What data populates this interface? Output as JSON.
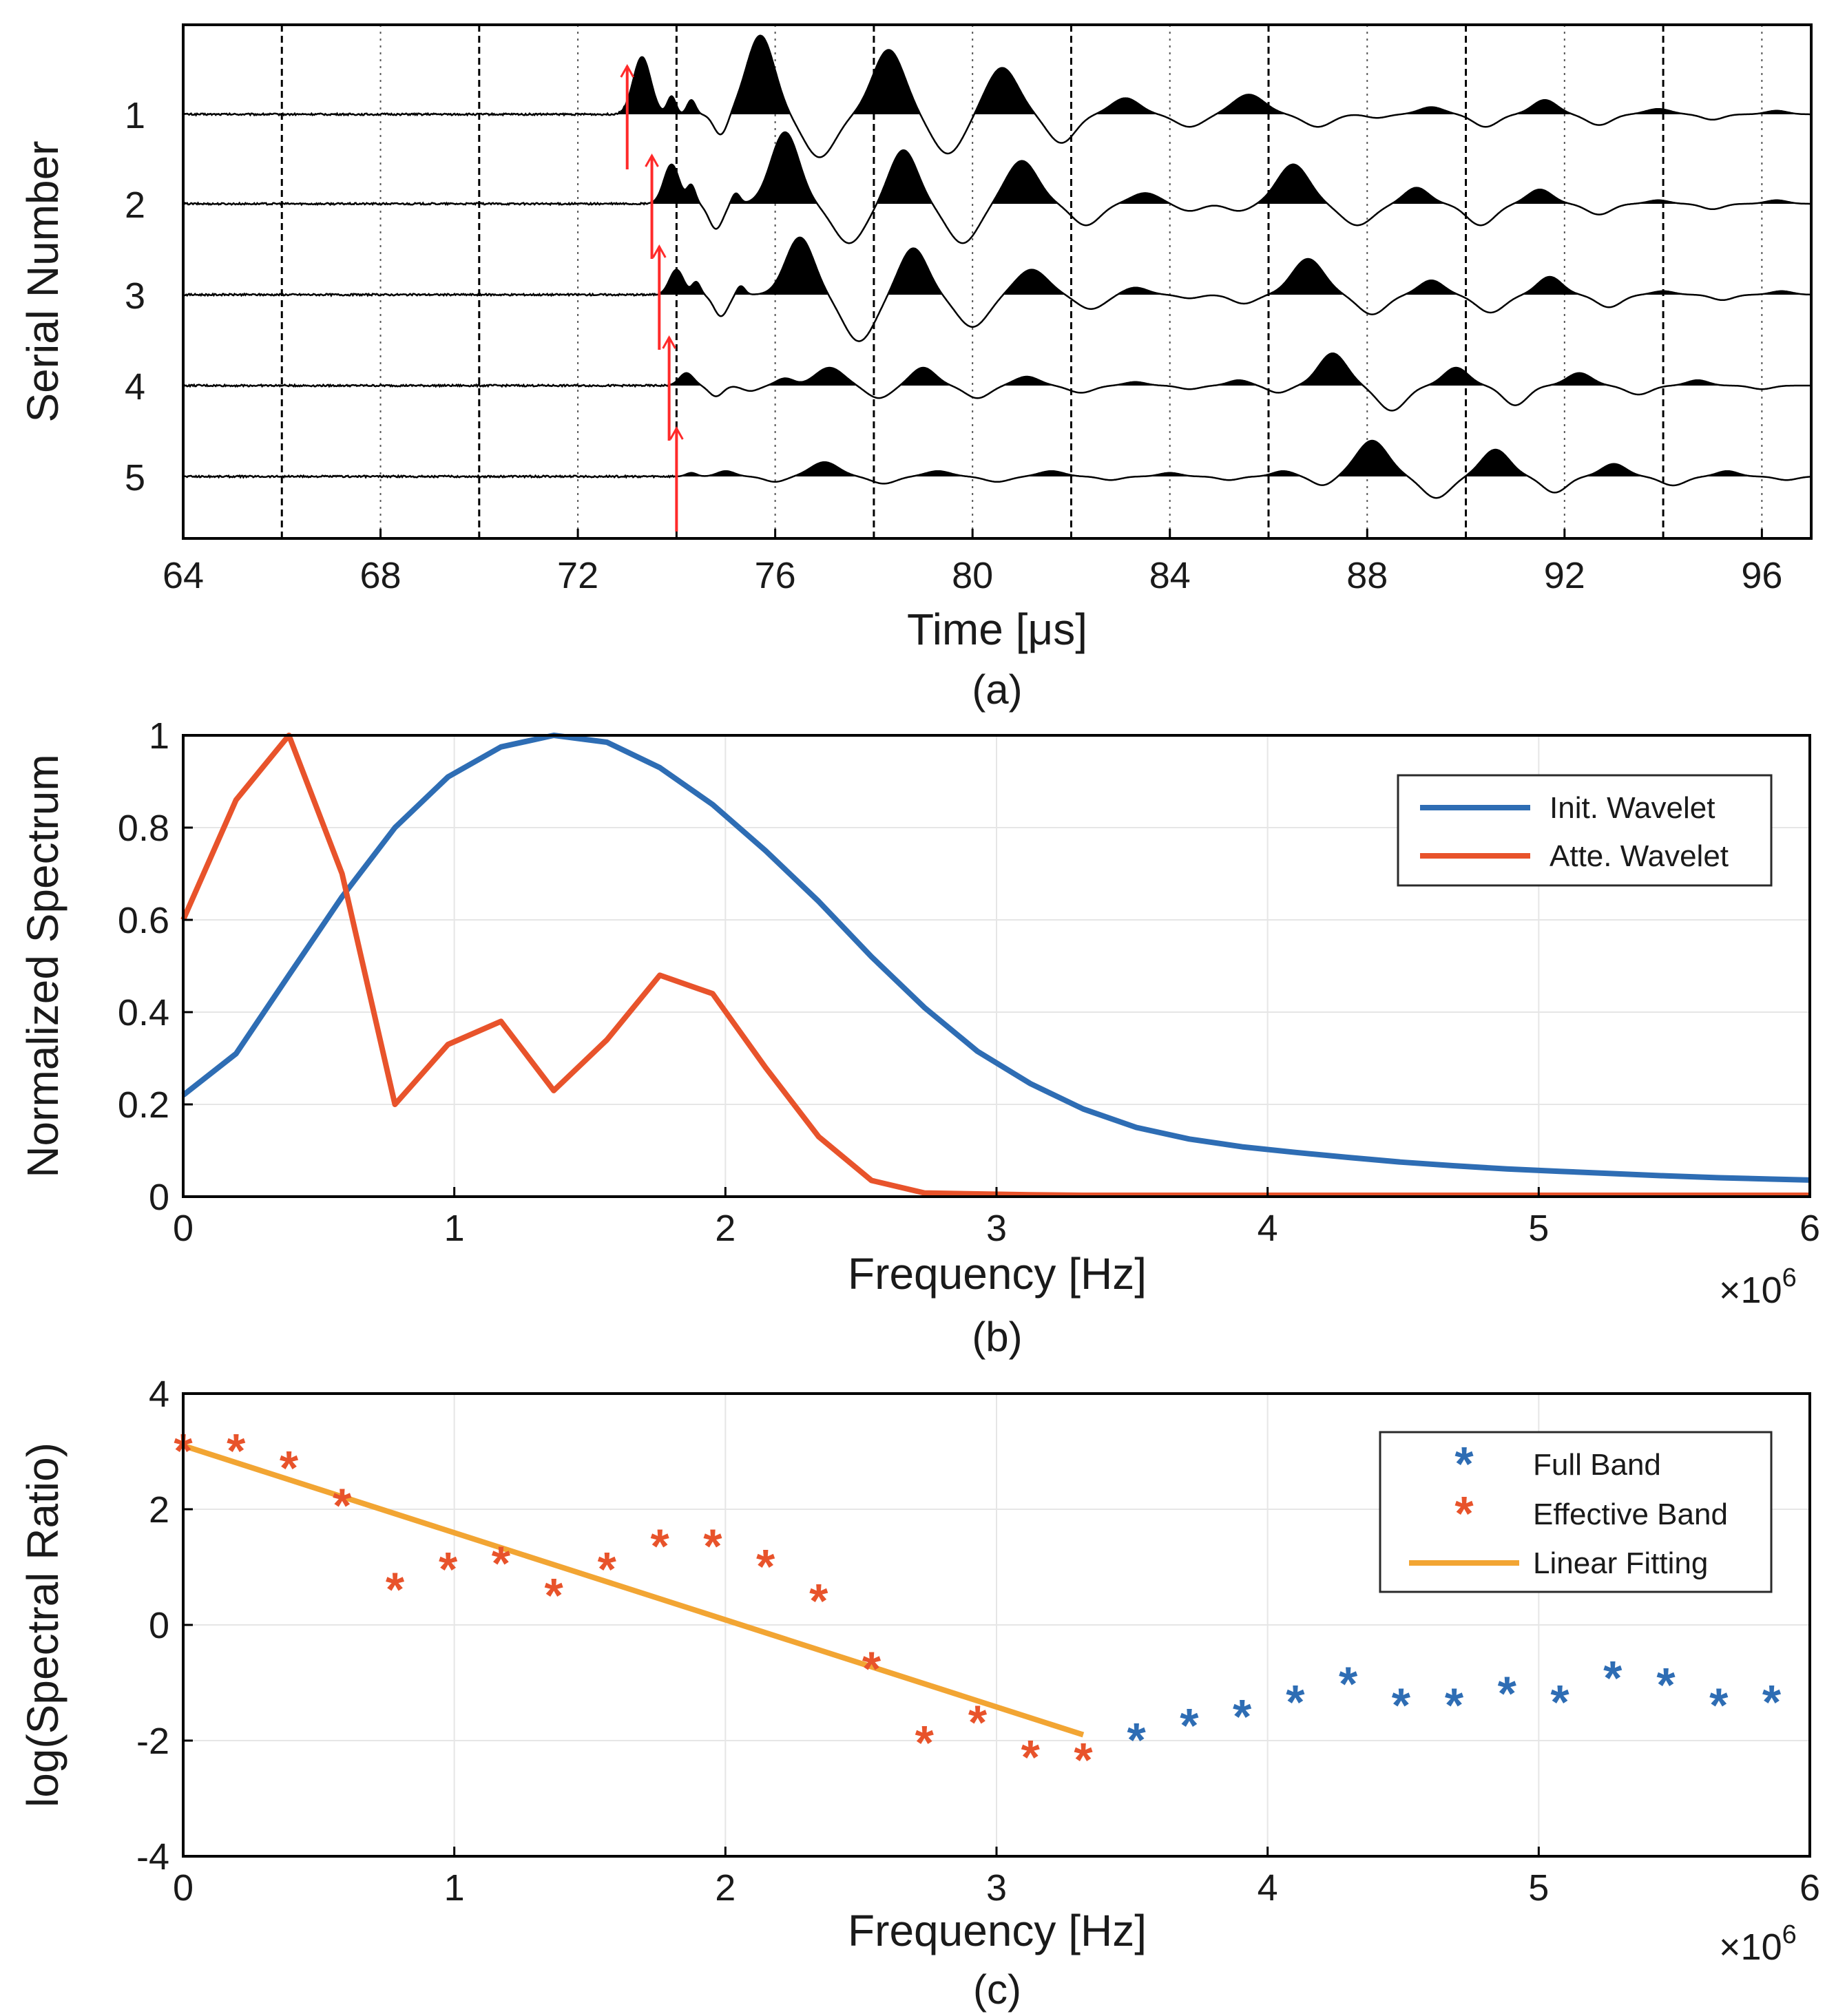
{
  "colors": {
    "blue": "#2e6db4",
    "orange": "#e8532b",
    "fit": "#f2a533",
    "arrow": "#ff2a2a",
    "grid": "#e6e6e6",
    "ink": "#000000"
  },
  "chart_data": [
    {
      "id": "a",
      "type": "wiggle",
      "sublabel": "(a)",
      "xlabel": "Time [μs]",
      "ylabel": "Serial Number",
      "xlim": [
        64,
        97
      ],
      "xticks": [
        64,
        68,
        72,
        76,
        80,
        84,
        88,
        92,
        96
      ],
      "dashed_lines": [
        66,
        70,
        74,
        78,
        82,
        86,
        90,
        94
      ],
      "dotted_lines": [
        68,
        72,
        76,
        80,
        84,
        88,
        92,
        96
      ],
      "traces": [
        {
          "label": "1",
          "onset": 73.0,
          "lobes": [
            [
              73.3,
              1.6,
              0.25
            ],
            [
              73.9,
              0.5,
              0.12
            ],
            [
              74.3,
              0.4,
              0.12
            ],
            [
              74.9,
              -0.6,
              0.2
            ],
            [
              75.7,
              2.2,
              0.4
            ],
            [
              76.9,
              -1.2,
              0.45
            ],
            [
              78.3,
              1.8,
              0.45
            ],
            [
              79.5,
              -1.1,
              0.45
            ],
            [
              80.6,
              1.3,
              0.45
            ],
            [
              81.8,
              -0.8,
              0.4
            ],
            [
              83.1,
              0.45,
              0.4
            ],
            [
              84.4,
              -0.35,
              0.4
            ],
            [
              85.6,
              0.55,
              0.45
            ],
            [
              87.0,
              -0.35,
              0.4
            ],
            [
              88.2,
              -0.1,
              0.3
            ],
            [
              89.3,
              0.2,
              0.35
            ],
            [
              90.4,
              -0.35,
              0.35
            ],
            [
              91.6,
              0.4,
              0.35
            ],
            [
              92.7,
              -0.3,
              0.35
            ],
            [
              93.9,
              0.15,
              0.35
            ],
            [
              95.0,
              -0.15,
              0.3
            ],
            [
              96.3,
              0.1,
              0.3
            ]
          ]
        },
        {
          "label": "2",
          "onset": 73.5,
          "lobes": [
            [
              73.9,
              1.1,
              0.22
            ],
            [
              74.3,
              0.5,
              0.12
            ],
            [
              74.8,
              -0.7,
              0.2
            ],
            [
              75.2,
              0.3,
              0.12
            ],
            [
              76.2,
              2.0,
              0.4
            ],
            [
              77.5,
              -1.1,
              0.45
            ],
            [
              78.6,
              1.5,
              0.4
            ],
            [
              79.8,
              -1.1,
              0.45
            ],
            [
              81.0,
              1.2,
              0.45
            ],
            [
              82.3,
              -0.6,
              0.4
            ],
            [
              83.5,
              0.3,
              0.4
            ],
            [
              84.4,
              -0.2,
              0.35
            ],
            [
              85.4,
              -0.2,
              0.35
            ],
            [
              86.5,
              1.1,
              0.45
            ],
            [
              87.8,
              -0.6,
              0.45
            ],
            [
              89.0,
              0.45,
              0.35
            ],
            [
              90.3,
              -0.6,
              0.4
            ],
            [
              91.5,
              0.4,
              0.35
            ],
            [
              92.7,
              -0.3,
              0.35
            ],
            [
              93.9,
              0.1,
              0.3
            ],
            [
              95.0,
              -0.15,
              0.3
            ],
            [
              96.3,
              0.1,
              0.3
            ]
          ]
        },
        {
          "label": "3",
          "onset": 73.65,
          "lobes": [
            [
              74.0,
              0.7,
              0.2
            ],
            [
              74.4,
              0.35,
              0.12
            ],
            [
              74.9,
              -0.6,
              0.2
            ],
            [
              75.3,
              0.25,
              0.12
            ],
            [
              76.5,
              1.6,
              0.4
            ],
            [
              77.7,
              -1.3,
              0.45
            ],
            [
              78.8,
              1.3,
              0.4
            ],
            [
              80.0,
              -0.9,
              0.45
            ],
            [
              81.2,
              0.7,
              0.45
            ],
            [
              82.4,
              -0.4,
              0.4
            ],
            [
              83.3,
              0.2,
              0.35
            ],
            [
              84.4,
              -0.1,
              0.3
            ],
            [
              85.5,
              -0.25,
              0.35
            ],
            [
              86.8,
              1.0,
              0.45
            ],
            [
              88.1,
              -0.55,
              0.4
            ],
            [
              89.3,
              0.4,
              0.35
            ],
            [
              90.5,
              -0.5,
              0.4
            ],
            [
              91.7,
              0.5,
              0.35
            ],
            [
              92.9,
              -0.35,
              0.35
            ],
            [
              94.0,
              0.1,
              0.3
            ],
            [
              95.2,
              -0.15,
              0.3
            ],
            [
              96.4,
              0.1,
              0.3
            ]
          ]
        },
        {
          "label": "4",
          "onset": 73.85,
          "lobes": [
            [
              74.2,
              0.35,
              0.2
            ],
            [
              74.8,
              -0.3,
              0.2
            ],
            [
              75.5,
              -0.15,
              0.25
            ],
            [
              76.2,
              0.2,
              0.25
            ],
            [
              77.1,
              0.5,
              0.4
            ],
            [
              78.1,
              -0.35,
              0.35
            ],
            [
              79.0,
              0.5,
              0.35
            ],
            [
              80.1,
              -0.35,
              0.35
            ],
            [
              81.1,
              0.25,
              0.35
            ],
            [
              82.2,
              -0.2,
              0.35
            ],
            [
              83.3,
              0.1,
              0.3
            ],
            [
              84.4,
              -0.1,
              0.3
            ],
            [
              85.4,
              0.15,
              0.3
            ],
            [
              86.2,
              -0.2,
              0.3
            ],
            [
              87.3,
              0.9,
              0.4
            ],
            [
              88.5,
              -0.7,
              0.4
            ],
            [
              89.8,
              0.5,
              0.35
            ],
            [
              91.0,
              -0.55,
              0.35
            ],
            [
              92.3,
              0.35,
              0.35
            ],
            [
              93.5,
              -0.25,
              0.35
            ],
            [
              94.7,
              0.15,
              0.3
            ],
            [
              96.0,
              -0.1,
              0.3
            ]
          ]
        },
        {
          "label": "5",
          "onset": 74.0,
          "lobes": [
            [
              74.3,
              0.1,
              0.15
            ],
            [
              75.0,
              0.15,
              0.25
            ],
            [
              76.0,
              -0.15,
              0.3
            ],
            [
              77.0,
              0.4,
              0.4
            ],
            [
              78.2,
              -0.2,
              0.35
            ],
            [
              79.3,
              0.15,
              0.35
            ],
            [
              80.5,
              -0.15,
              0.35
            ],
            [
              81.6,
              0.15,
              0.35
            ],
            [
              82.8,
              -0.1,
              0.3
            ],
            [
              84.0,
              0.1,
              0.3
            ],
            [
              85.2,
              -0.1,
              0.3
            ],
            [
              86.3,
              0.15,
              0.3
            ],
            [
              87.1,
              -0.25,
              0.3
            ],
            [
              88.1,
              1.0,
              0.45
            ],
            [
              89.4,
              -0.6,
              0.4
            ],
            [
              90.6,
              0.75,
              0.4
            ],
            [
              91.8,
              -0.45,
              0.35
            ],
            [
              93.0,
              0.35,
              0.35
            ],
            [
              94.2,
              -0.25,
              0.35
            ],
            [
              95.3,
              0.15,
              0.3
            ],
            [
              96.5,
              -0.1,
              0.3
            ]
          ]
        }
      ]
    },
    {
      "id": "b",
      "type": "line",
      "sublabel": "(b)",
      "xlabel": "Frequency [Hz]",
      "ylabel": "Normalized Spectrum",
      "x_multiplier": "×10",
      "x_multiplier_exp": "6",
      "xlim": [
        0,
        6
      ],
      "ylim": [
        0,
        1
      ],
      "xticks": [
        0,
        1,
        2,
        3,
        4,
        5,
        6
      ],
      "yticks": [
        0,
        0.2,
        0.4,
        0.6,
        0.8,
        1
      ],
      "legend_position": "top-right",
      "series": [
        {
          "name": "Init. Wavelet",
          "color": "blue",
          "x": [
            0,
            0.195,
            0.39,
            0.586,
            0.781,
            0.977,
            1.172,
            1.367,
            1.563,
            1.758,
            1.953,
            2.148,
            2.344,
            2.539,
            2.734,
            2.93,
            3.125,
            3.32,
            3.516,
            3.711,
            3.906,
            4.102,
            4.297,
            4.492,
            4.688,
            4.883,
            5.078,
            5.273,
            5.469,
            5.664,
            5.859,
            6.0
          ],
          "y": [
            0.22,
            0.31,
            0.48,
            0.65,
            0.8,
            0.91,
            0.975,
            1.0,
            0.985,
            0.93,
            0.85,
            0.75,
            0.64,
            0.52,
            0.41,
            0.315,
            0.245,
            0.19,
            0.15,
            0.125,
            0.108,
            0.096,
            0.085,
            0.075,
            0.067,
            0.06,
            0.055,
            0.05,
            0.045,
            0.041,
            0.038,
            0.036
          ]
        },
        {
          "name": "Atte. Wavelet",
          "color": "orange",
          "x": [
            0,
            0.195,
            0.39,
            0.586,
            0.781,
            0.977,
            1.172,
            1.367,
            1.563,
            1.758,
            1.953,
            2.148,
            2.344,
            2.539,
            2.734,
            2.93,
            3.125,
            3.32,
            3.516,
            3.711,
            3.906,
            4.102,
            4.297,
            4.492,
            4.688,
            4.883,
            5.078,
            5.273,
            5.469,
            5.664,
            5.859,
            6.0
          ],
          "y": [
            0.6,
            0.86,
            1.0,
            0.7,
            0.2,
            0.33,
            0.38,
            0.23,
            0.34,
            0.48,
            0.44,
            0.28,
            0.13,
            0.035,
            0.008,
            0.006,
            0.004,
            0.003,
            0.003,
            0.003,
            0.003,
            0.003,
            0.003,
            0.003,
            0.003,
            0.003,
            0.003,
            0.003,
            0.003,
            0.003,
            0.003,
            0.003
          ]
        }
      ]
    },
    {
      "id": "c",
      "type": "scatter",
      "sublabel": "(c)",
      "xlabel": "Frequency [Hz]",
      "ylabel": "log(Spectral Ratio)",
      "x_multiplier": "×10",
      "x_multiplier_exp": "6",
      "xlim": [
        0,
        6
      ],
      "ylim": [
        -4,
        4
      ],
      "xticks": [
        0,
        1,
        2,
        3,
        4,
        5,
        6
      ],
      "yticks": [
        -4,
        -2,
        0,
        2,
        4
      ],
      "legend_position": "top-right",
      "series": [
        {
          "name": "Full Band",
          "color": "blue",
          "marker": "*",
          "x": [
            3.516,
            3.711,
            3.906,
            4.102,
            4.297,
            4.492,
            4.688,
            4.883,
            5.078,
            5.273,
            5.469,
            5.664,
            5.859
          ],
          "y": [
            -1.95,
            -1.7,
            -1.55,
            -1.3,
            -0.98,
            -1.35,
            -1.35,
            -1.15,
            -1.3,
            -0.88,
            -1.0,
            -1.35,
            -1.3
          ]
        },
        {
          "name": "Effective Band",
          "color": "orange",
          "marker": "*",
          "x": [
            0,
            0.195,
            0.39,
            0.586,
            0.781,
            0.977,
            1.172,
            1.367,
            1.563,
            1.758,
            1.953,
            2.148,
            2.344,
            2.539,
            2.734,
            2.93,
            3.125,
            3.32
          ],
          "y": [
            3.05,
            3.05,
            2.75,
            2.1,
            0.65,
            1.0,
            1.1,
            0.55,
            1.0,
            1.4,
            1.4,
            1.05,
            0.45,
            -0.72,
            -2.0,
            -1.65,
            -2.25,
            -2.3
          ]
        },
        {
          "name": "Linear Fitting",
          "color": "fit",
          "type": "line",
          "x": [
            0,
            3.32
          ],
          "y": [
            3.1,
            -1.9
          ]
        }
      ]
    }
  ]
}
